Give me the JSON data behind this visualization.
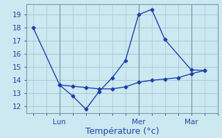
{
  "line1_x": [
    0,
    2,
    3,
    4,
    5,
    6,
    7,
    8,
    9,
    10,
    12,
    13
  ],
  "line1_y": [
    18.0,
    13.65,
    12.8,
    11.8,
    13.15,
    14.2,
    15.5,
    19.0,
    19.4,
    17.1,
    14.8,
    14.75
  ],
  "line2_x": [
    2,
    3,
    4,
    5,
    6,
    7,
    8,
    9,
    10,
    11,
    12,
    13
  ],
  "line2_y": [
    13.65,
    13.55,
    13.45,
    13.35,
    13.35,
    13.5,
    13.85,
    14.0,
    14.1,
    14.2,
    14.5,
    14.75
  ],
  "line_color": "#1c3faa",
  "bg_color": "#cce8f0",
  "grid_color": "#aac8d4",
  "tick_label_color": "#2244aa",
  "xlabel": "Température (°c)",
  "xlabel_color": "#2244aa",
  "xlabel_fontsize": 9,
  "yticks": [
    12,
    13,
    14,
    15,
    16,
    17,
    18,
    19
  ],
  "ylim": [
    11.5,
    19.8
  ],
  "xlim": [
    -0.5,
    14.0
  ],
  "xtick_positions": [
    2,
    8,
    12
  ],
  "xtick_labels": [
    "Lun",
    "Mer",
    "Mar"
  ],
  "vline_positions": [
    2,
    8,
    12
  ],
  "vline_color": "#7799aa",
  "marker": "D",
  "markersize": 2.5,
  "linewidth": 1.0
}
